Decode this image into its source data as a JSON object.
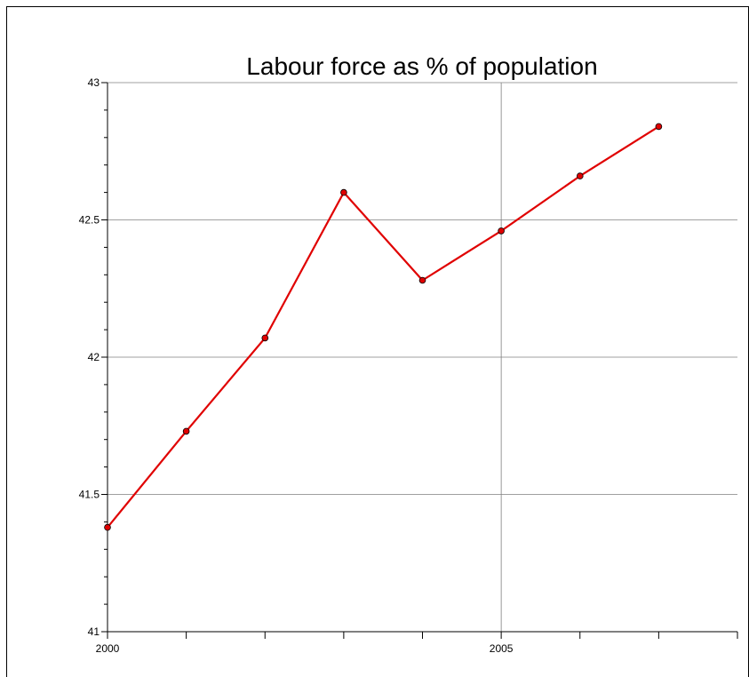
{
  "chart_data": {
    "type": "line",
    "title": "Labour force as % of population",
    "xlabel": "",
    "ylabel": "",
    "xlim": [
      2000,
      2008
    ],
    "ylim": [
      41,
      43
    ],
    "x_major_ticks": [
      2000,
      2005
    ],
    "x_minor_ticks": [
      2001,
      2002,
      2003,
      2004,
      2006,
      2007,
      2008
    ],
    "y_major_ticks": [
      41,
      41.5,
      42,
      42.5,
      43
    ],
    "grid": "major",
    "series": [
      {
        "x": [
          2000,
          2001,
          2002,
          2003,
          2004,
          2005,
          2006,
          2007
        ],
        "values": [
          41.38,
          41.73,
          42.07,
          42.6,
          42.28,
          42.46,
          42.66,
          42.84
        ],
        "color": "#e00000",
        "marker": "circle"
      }
    ]
  }
}
